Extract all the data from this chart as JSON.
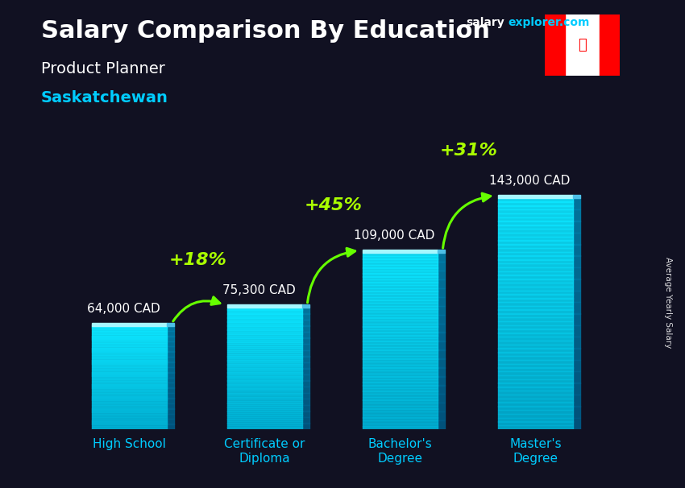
{
  "title_main": "Salary Comparison By Education",
  "title_sub": "Product Planner",
  "title_region": "Saskatchewan",
  "ylabel": "Average Yearly Salary",
  "website_white": "salary",
  "website_cyan": "explorer.com",
  "categories": [
    "High School",
    "Certificate or\nDiploma",
    "Bachelor's\nDegree",
    "Master's\nDegree"
  ],
  "values": [
    64000,
    75300,
    109000,
    143000
  ],
  "value_labels": [
    "64,000 CAD",
    "75,300 CAD",
    "109,000 CAD",
    "143,000 CAD"
  ],
  "pct_labels": [
    "+18%",
    "+45%",
    "+31%"
  ],
  "bar_face_color": "#00c8f0",
  "bar_side_color": "#0077aa",
  "bar_top_color": "#80e8ff",
  "arrow_color": "#66ff00",
  "pct_color": "#aaff00",
  "title_color": "#ffffff",
  "sub_title_color": "#ffffff",
  "region_color": "#00ccff",
  "value_label_color": "#ffffff",
  "xlabel_color": "#00ccff",
  "bg_color": "#111122",
  "bar_width": 0.55,
  "ylim": [
    0,
    175000
  ],
  "title_fontsize": 22,
  "sub_fontsize": 14,
  "region_fontsize": 14,
  "val_fontsize": 11,
  "pct_fontsize": 16,
  "xtick_fontsize": 11
}
